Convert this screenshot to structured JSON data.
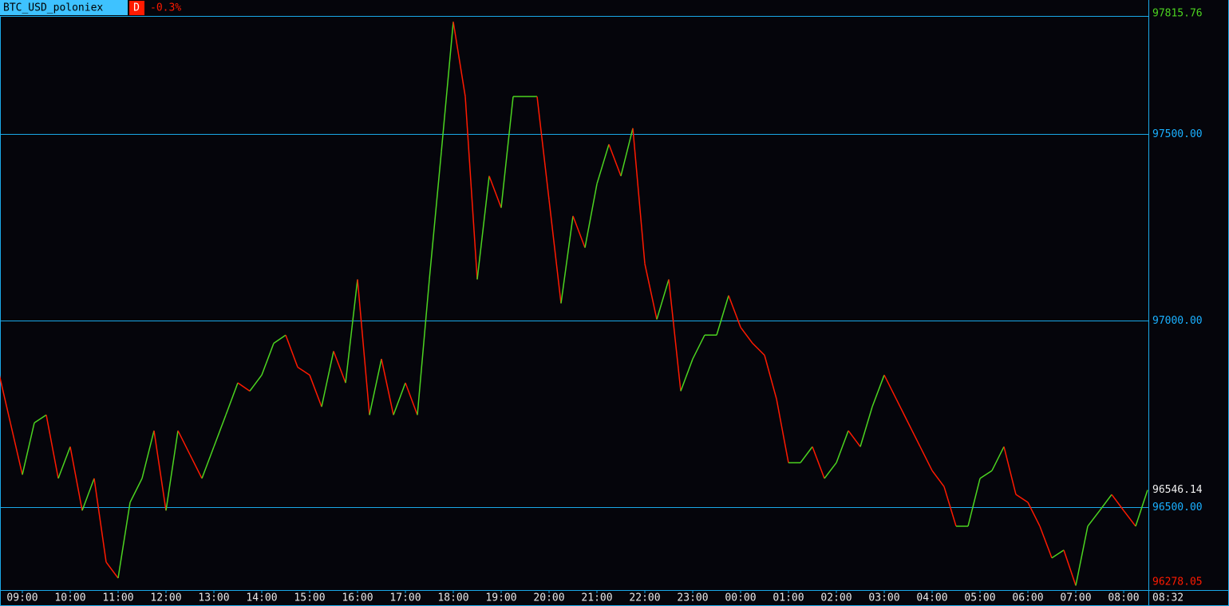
{
  "header": {
    "symbol": "BTC_USD_poloniex",
    "timeframe": "D",
    "change": "-0.3%"
  },
  "chart_data": {
    "type": "line",
    "values": [
      96865,
      96726,
      96587,
      96726,
      96747,
      96577,
      96662,
      96491,
      96577,
      96353,
      96310,
      96513,
      96577,
      96705,
      96491,
      96705,
      96641,
      96577,
      96662,
      96747,
      96833,
      96811,
      96854,
      96939,
      96961,
      96875,
      96854,
      96769,
      96918,
      96833,
      97110,
      96747,
      96897,
      96747,
      96833,
      96747,
      97110,
      97451,
      97800,
      97600,
      97110,
      97387,
      97302,
      97600,
      97600,
      97600,
      97323,
      97046,
      97280,
      97195,
      97366,
      97472,
      97387,
      97515,
      97152,
      97003,
      97110,
      96811,
      96897,
      96961,
      96961,
      97067,
      96982,
      96939,
      96907,
      96790,
      96619,
      96619,
      96662,
      96577,
      96619,
      96705,
      96662,
      96769,
      96854,
      96790,
      96726,
      96662,
      96598,
      96555,
      96449,
      96449,
      96577,
      96598,
      96662,
      96534,
      96513,
      96449,
      96364,
      96385,
      96290,
      96449,
      96491,
      96534,
      96491,
      96449,
      96546.14
    ],
    "up_color": "#4cd420",
    "down_color": "#ff1a00",
    "ylim": [
      96278.05,
      97815.76
    ],
    "yticks": [
      {
        "value": 97500,
        "label": "97500.00"
      },
      {
        "value": 97000,
        "label": "97000.00"
      },
      {
        "value": 96500,
        "label": "96500.00"
      }
    ],
    "grid": true,
    "grid_color": "#1aa8e8",
    "xticks": [
      {
        "value": 2,
        "label": "09:00"
      },
      {
        "value": 6,
        "label": "10:00"
      },
      {
        "value": 10,
        "label": "11:00"
      },
      {
        "value": 14,
        "label": "12:00"
      },
      {
        "value": 18,
        "label": "13:00"
      },
      {
        "value": 22,
        "label": "14:00"
      },
      {
        "value": 26,
        "label": "15:00"
      },
      {
        "value": 30,
        "label": "16:00"
      },
      {
        "value": 34,
        "label": "17:00"
      },
      {
        "value": 38,
        "label": "18:00"
      },
      {
        "value": 42,
        "label": "19:00"
      },
      {
        "value": 46,
        "label": "20:00"
      },
      {
        "value": 50,
        "label": "21:00"
      },
      {
        "value": 54,
        "label": "22:00"
      },
      {
        "value": 58,
        "label": "23:00"
      },
      {
        "value": 62,
        "label": "00:00"
      },
      {
        "value": 66,
        "label": "01:00"
      },
      {
        "value": 70,
        "label": "02:00"
      },
      {
        "value": 74,
        "label": "03:00"
      },
      {
        "value": 78,
        "label": "04:00"
      },
      {
        "value": 82,
        "label": "05:00"
      },
      {
        "value": 86,
        "label": "06:00"
      },
      {
        "value": 90,
        "label": "07:00"
      },
      {
        "value": 94,
        "label": "08:00"
      }
    ],
    "current_time": "08:32"
  }
}
